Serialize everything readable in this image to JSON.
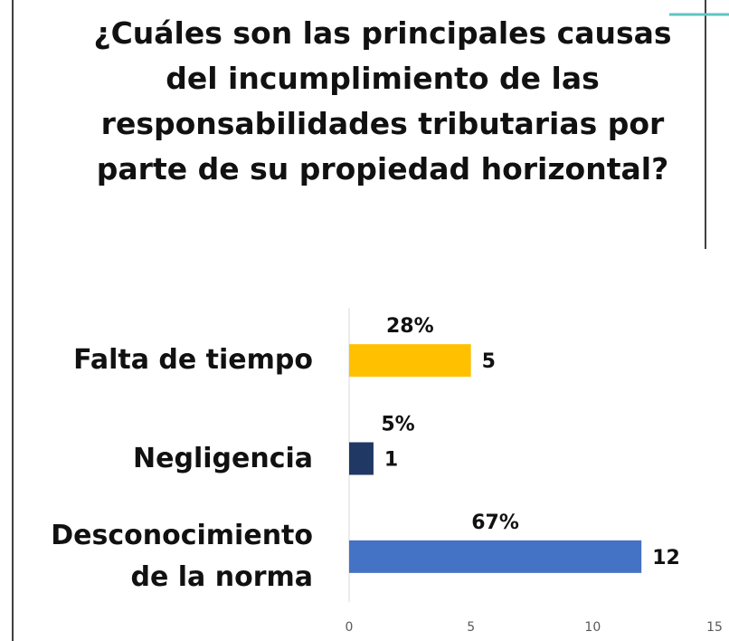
{
  "chart_data": {
    "type": "bar",
    "orientation": "horizontal",
    "title": "¿Cuáles son las principales causas del incumplimiento de las responsabilidades tributarias por parte de su propiedad horizontal?",
    "categories": [
      "Falta de tiempo",
      "Negligencia",
      "Desconocimiento de la norma"
    ],
    "values": [
      5,
      1,
      12
    ],
    "colors": [
      "#ffc000",
      "#1f3864",
      "#4472c4"
    ],
    "annotations": [
      "28%",
      "5%",
      "67%"
    ],
    "xlim": [
      0,
      15
    ],
    "xticks": [
      0,
      5,
      10,
      15
    ]
  }
}
